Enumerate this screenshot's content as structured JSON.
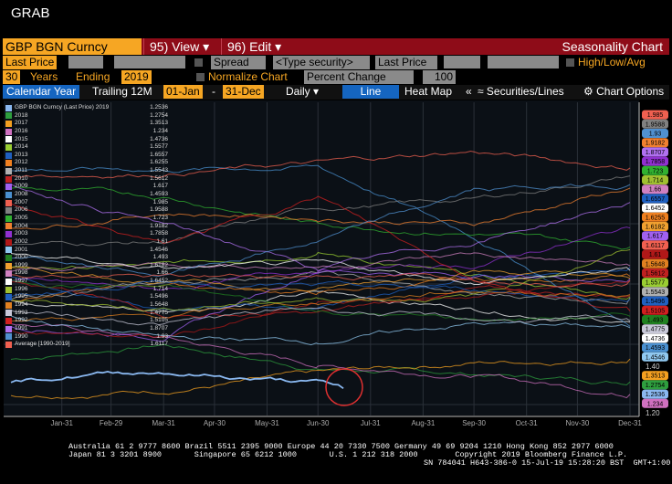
{
  "window_title": "GRAB",
  "header": {
    "security": "GBP BGN Curncy",
    "view_menu": "95) View",
    "edit_menu": "96) Edit",
    "title": "Seasonality Chart"
  },
  "controls": {
    "field": "Last Price",
    "spread": "Spread",
    "type_security_placeholder": "<Type security>",
    "field2": "Last Price",
    "high_low_avg": "High/Low/Avg",
    "years": "30",
    "years_label": "Years",
    "ending_label": "Ending",
    "ending_year": "2019",
    "normalize": "Normalize Chart",
    "normalize_mode": "Percent Change",
    "normalize_base": "100"
  },
  "tabs": {
    "calendar_year": "Calendar Year",
    "trailing": "Trailing 12M",
    "from": "01-Jan",
    "dash": "-",
    "to": "31-Dec",
    "frequency": "Daily",
    "line": "Line",
    "heat_map": "Heat Map",
    "collapse": "«",
    "securities_lines": "Securities/Lines",
    "chart_options": "Chart Options"
  },
  "footer": {
    "line1": "Australia 61 2 9777 8600 Brazil 5511 2395 9000 Europe 44 20 7330 7500 Germany 49 69 9204 1210 Hong Kong 852 2977 6000",
    "line2": "Japan 81 3 3201 8900       Singapore 65 6212 1000       U.S. 1 212 318 2000        Copyright 2019 Bloomberg Finance L.P.",
    "line3": "SN 784041 H643-386-0 15-Jul-19 15:28:20 BST  GMT+1:00"
  },
  "chart_data": {
    "type": "line",
    "x": [
      "Jan-01",
      "Mar-31",
      "Jun-30",
      "Sep-30",
      "Dec-31"
    ],
    "x_ticks": [
      "Jan-31",
      "Feb-29",
      "Mar-31",
      "Apr-30",
      "May-31",
      "Jun-30",
      "Jul-31",
      "Aug-31",
      "Sep-30",
      "Oct-31",
      "Nov-30",
      "Dec-31"
    ],
    "y_ticks": [
      "1.40",
      "1.20"
    ],
    "y_tick_values": [
      1.4,
      1.2
    ],
    "ylim": [
      1.12,
      2.18
    ],
    "highlight": "red circle around latest 2019 value",
    "series": [
      {
        "name": "GBP BGN Curncy (Last Price) 2019",
        "last": "1.2536",
        "color": "#8ab8f0",
        "x": [
          "Jan-01",
          "Feb-15",
          "Mar-31",
          "May-15",
          "Jun-30",
          "Jul-15"
        ],
        "values": [
          1.275,
          1.3,
          1.31,
          1.29,
          1.27,
          1.2536
        ]
      },
      {
        "name": "2018",
        "last": "1.2754",
        "color": "#2e9e3e",
        "values": [
          1.35,
          1.4,
          1.32,
          1.3,
          1.2754
        ]
      },
      {
        "name": "2017",
        "last": "1.3513",
        "color": "#f4a020",
        "values": [
          1.23,
          1.25,
          1.3,
          1.34,
          1.3513
        ]
      },
      {
        "name": "2016",
        "last": "1.234",
        "color": "#d070c0",
        "values": [
          1.47,
          1.42,
          1.33,
          1.3,
          1.234
        ]
      },
      {
        "name": "2015",
        "last": "1.4736",
        "color": "#ffffff",
        "values": [
          1.55,
          1.51,
          1.57,
          1.52,
          1.4736
        ]
      },
      {
        "name": "2014",
        "last": "1.5577",
        "color": "#9acd32",
        "values": [
          1.65,
          1.66,
          1.71,
          1.62,
          1.5577
        ]
      },
      {
        "name": "2013",
        "last": "1.6557",
        "color": "#1f5fbf",
        "values": [
          1.62,
          1.52,
          1.52,
          1.62,
          1.6557
        ]
      },
      {
        "name": "2012",
        "last": "1.6255",
        "color": "#f08020",
        "values": [
          1.55,
          1.6,
          1.57,
          1.61,
          1.6255
        ]
      },
      {
        "name": "2011",
        "last": "1.5543",
        "color": "#b0b0b0",
        "values": [
          1.55,
          1.6,
          1.64,
          1.56,
          1.5543
        ]
      },
      {
        "name": "2010",
        "last": "1.5612",
        "color": "#c02020",
        "values": [
          1.61,
          1.5,
          1.5,
          1.58,
          1.5612
        ]
      },
      {
        "name": "2009",
        "last": "1.617",
        "color": "#a060f0",
        "values": [
          1.46,
          1.43,
          1.65,
          1.63,
          1.617
        ]
      },
      {
        "name": "2008",
        "last": "1.4593",
        "color": "#4a90d0",
        "values": [
          1.98,
          1.98,
          1.99,
          1.76,
          1.4593
        ]
      },
      {
        "name": "2007",
        "last": "1.985",
        "color": "#f06050",
        "values": [
          1.96,
          1.97,
          2.0,
          2.04,
          1.985
        ]
      },
      {
        "name": "2006",
        "last": "1.9588",
        "color": "#808080",
        "values": [
          1.73,
          1.74,
          1.85,
          1.88,
          1.9588
        ]
      },
      {
        "name": "2005",
        "last": "1.723",
        "color": "#30b030",
        "values": [
          1.92,
          1.89,
          1.8,
          1.77,
          1.723
        ]
      },
      {
        "name": "2004",
        "last": "1.9182",
        "color": "#f08030",
        "values": [
          1.78,
          1.84,
          1.82,
          1.8,
          1.9182
        ]
      },
      {
        "name": "2003",
        "last": "1.7858",
        "color": "#9030d0",
        "values": [
          1.61,
          1.58,
          1.65,
          1.66,
          1.7858
        ]
      },
      {
        "name": "2002",
        "last": "1.61",
        "color": "#b01818",
        "values": [
          1.45,
          1.42,
          1.53,
          1.56,
          1.61
        ]
      },
      {
        "name": "2001",
        "last": "1.4546",
        "color": "#90c8f0",
        "values": [
          1.49,
          1.42,
          1.41,
          1.47,
          1.4546
        ]
      },
      {
        "name": "2000",
        "last": "1.493",
        "color": "#208020",
        "values": [
          1.61,
          1.59,
          1.51,
          1.48,
          1.493
        ]
      },
      {
        "name": "1999",
        "last": "1.6182",
        "color": "#f0a030",
        "values": [
          1.66,
          1.61,
          1.58,
          1.65,
          1.6182
        ]
      },
      {
        "name": "1998",
        "last": "1.66",
        "color": "#d080c0",
        "values": [
          1.64,
          1.67,
          1.66,
          1.7,
          1.66
        ]
      },
      {
        "name": "1997",
        "last": "1.6452",
        "color": "#ffffff",
        "values": [
          1.7,
          1.65,
          1.66,
          1.61,
          1.6452
        ]
      },
      {
        "name": "1996",
        "last": "1.714",
        "color": "#a0c030",
        "values": [
          1.55,
          1.52,
          1.55,
          1.56,
          1.714
        ]
      },
      {
        "name": "1995",
        "last": "1.5496",
        "color": "#2060c0",
        "values": [
          1.56,
          1.61,
          1.59,
          1.58,
          1.5496
        ]
      },
      {
        "name": "1994",
        "last": "1.5648",
        "color": "#e08020",
        "values": [
          1.48,
          1.49,
          1.54,
          1.58,
          1.5648
        ]
      },
      {
        "name": "1993",
        "last": "1.4775",
        "color": "#c8c8d8",
        "values": [
          1.51,
          1.47,
          1.52,
          1.48,
          1.4775
        ]
      },
      {
        "name": "1992",
        "last": "1.5105",
        "color": "#d02020",
        "values": [
          1.87,
          1.73,
          1.89,
          1.62,
          1.5105
        ]
      },
      {
        "name": "1991",
        "last": "1.8707",
        "color": "#b070f0",
        "values": [
          1.93,
          1.8,
          1.65,
          1.74,
          1.8707
        ]
      },
      {
        "name": "1990",
        "last": "1.93",
        "color": "#5090d0",
        "values": [
          1.69,
          1.63,
          1.74,
          1.91,
          1.93
        ]
      },
      {
        "name": "Average [1990-2019]",
        "last": "1.6117",
        "color": "#f06050",
        "values": [
          1.63,
          1.62,
          1.63,
          1.62,
          1.6117
        ]
      }
    ]
  }
}
